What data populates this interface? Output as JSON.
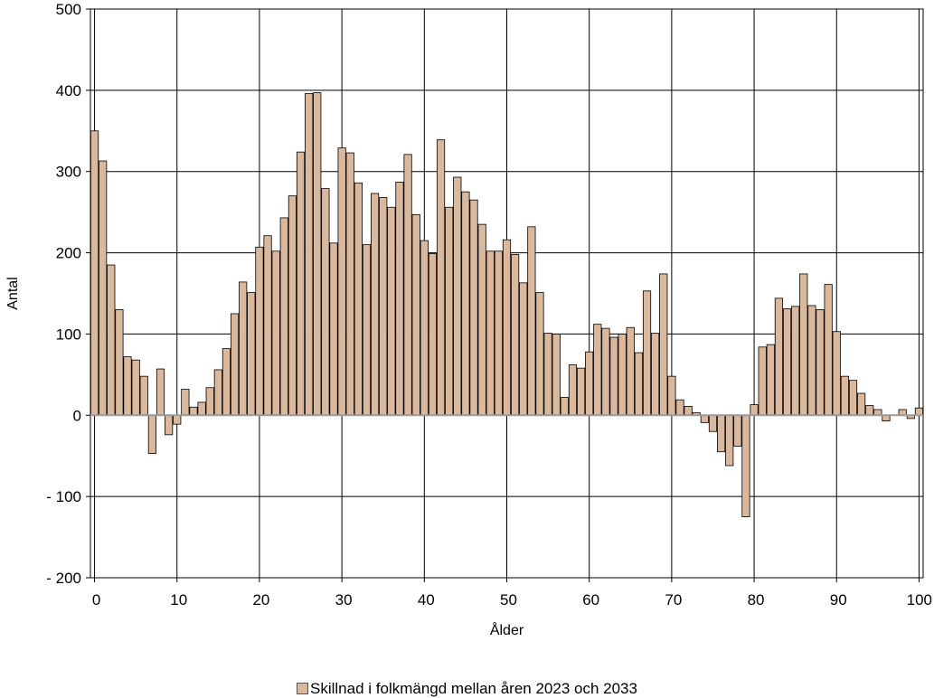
{
  "chart_data": {
    "type": "bar",
    "xlabel": "Ålder",
    "ylabel": "Antal",
    "xlim": [
      0,
      100
    ],
    "ylim": [
      -200,
      500
    ],
    "x_ticks": [
      0,
      10,
      20,
      30,
      40,
      50,
      60,
      70,
      80,
      90,
      100
    ],
    "y_ticks": [
      500,
      400,
      300,
      200,
      100,
      0,
      -100,
      -200
    ],
    "y_tick_labels": [
      "500",
      "400",
      "300",
      "200",
      "100",
      "0",
      "- 100",
      "- 200"
    ],
    "grid": true,
    "legend_position": "bottom",
    "bar_color": "#d9b89d",
    "series": [
      {
        "name": "Skillnad i folkmängd mellan åren 2023 och 2033",
        "x": [
          0,
          1,
          2,
          3,
          4,
          5,
          6,
          7,
          8,
          9,
          10,
          11,
          12,
          13,
          14,
          15,
          16,
          17,
          18,
          19,
          20,
          21,
          22,
          23,
          24,
          25,
          26,
          27,
          28,
          29,
          30,
          31,
          32,
          33,
          34,
          35,
          36,
          37,
          38,
          39,
          40,
          41,
          42,
          43,
          44,
          45,
          46,
          47,
          48,
          49,
          50,
          51,
          52,
          53,
          54,
          55,
          56,
          57,
          58,
          59,
          60,
          61,
          62,
          63,
          64,
          65,
          66,
          67,
          68,
          69,
          70,
          71,
          72,
          73,
          74,
          75,
          76,
          77,
          78,
          79,
          80,
          81,
          82,
          83,
          84,
          85,
          86,
          87,
          88,
          89,
          90,
          91,
          92,
          93,
          94,
          95,
          96,
          97,
          98,
          99,
          100
        ],
        "values": [
          350,
          313,
          185,
          130,
          72,
          68,
          48,
          -47,
          57,
          -24,
          -11,
          32,
          10,
          16,
          34,
          56,
          82,
          125,
          164,
          151,
          207,
          221,
          202,
          243,
          270,
          324,
          396,
          397,
          279,
          212,
          329,
          323,
          286,
          210,
          273,
          268,
          256,
          287,
          321,
          247,
          215,
          199,
          339,
          256,
          293,
          275,
          265,
          235,
          202,
          202,
          216,
          198,
          163,
          232,
          151,
          101,
          100,
          22,
          62,
          58,
          78,
          112,
          107,
          96,
          100,
          108,
          77,
          153,
          101,
          174,
          48,
          19,
          11,
          3,
          -9,
          -20,
          -45,
          -62,
          -38,
          -125,
          13,
          84,
          87,
          144,
          131,
          134,
          174,
          135,
          130,
          161,
          103,
          48,
          43,
          27,
          12,
          7,
          -7,
          0,
          7,
          -4,
          9
        ]
      }
    ]
  }
}
